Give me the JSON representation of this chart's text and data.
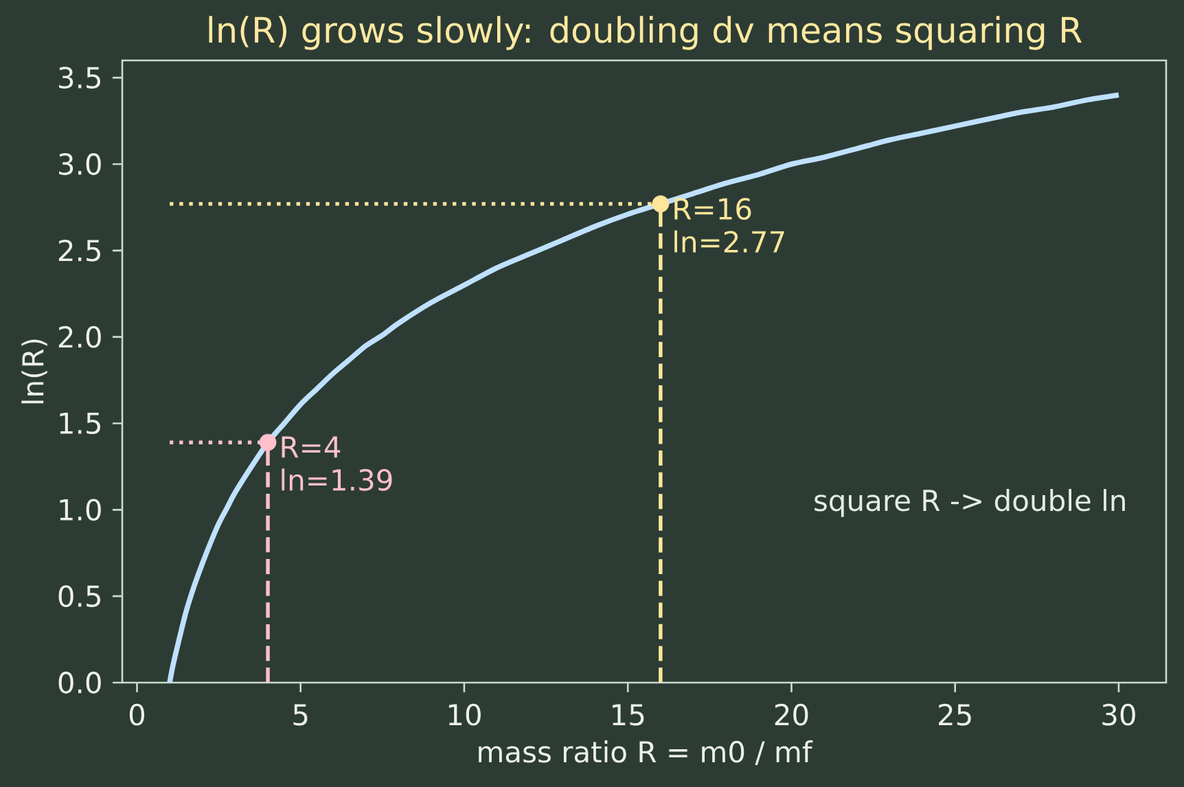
{
  "chart_data": {
    "type": "line",
    "title": "ln(R) grows slowly: doubling dv means squaring R",
    "xlabel": "mass ratio  R = m0 / mf",
    "ylabel": "ln(R)",
    "xlim": [
      -0.45,
      31.45
    ],
    "ylim": [
      0,
      3.6
    ],
    "xticks": [
      0,
      5,
      10,
      15,
      20,
      25,
      30
    ],
    "yticks": [
      {
        "value": 0,
        "label": "0.0"
      },
      0.5,
      {
        "value": 1,
        "label": "1.0"
      },
      1.5,
      {
        "value": 2,
        "label": "2.0"
      },
      2.5,
      {
        "value": 3,
        "label": "3.0"
      },
      3.5
    ],
    "series": [
      {
        "color": "#bfe0ff",
        "line_style": "solid",
        "x": [
          1,
          1.1,
          1.25,
          1.5,
          1.75,
          2,
          2.25,
          2.5,
          2.75,
          3,
          3.5,
          4,
          4.5,
          5,
          5.5,
          6,
          6.5,
          7,
          7.5,
          8,
          9,
          10,
          11,
          12,
          13,
          14,
          15,
          16,
          17,
          18,
          19,
          20,
          21,
          22,
          23,
          24,
          25,
          26,
          27,
          28,
          29,
          30
        ],
        "values": [
          0,
          0.1,
          0.22,
          0.41,
          0.56,
          0.69,
          0.81,
          0.92,
          1.01,
          1.1,
          1.25,
          1.39,
          1.5,
          1.61,
          1.7,
          1.79,
          1.87,
          1.95,
          2.01,
          2.08,
          2.2,
          2.3,
          2.4,
          2.48,
          2.56,
          2.64,
          2.71,
          2.77,
          2.83,
          2.89,
          2.94,
          3.0,
          3.04,
          3.09,
          3.14,
          3.18,
          3.22,
          3.26,
          3.3,
          3.33,
          3.37,
          3.4
        ]
      },
      {
        "type": "line",
        "color": "#ffc0cb",
        "line_style": "dashed",
        "x": [
          4,
          4
        ],
        "values": [
          0,
          1.39
        ]
      },
      {
        "type": "line",
        "color": "#ffc0cb",
        "line_style": "dotted",
        "x": [
          1,
          4
        ],
        "values": [
          1.39,
          1.39
        ]
      },
      {
        "type": "line",
        "color": "#ffe69a",
        "line_style": "dashed",
        "x": [
          16,
          16
        ],
        "values": [
          0,
          2.77
        ]
      },
      {
        "type": "line",
        "color": "#ffe69a",
        "line_style": "dotted",
        "x": [
          1,
          16
        ],
        "values": [
          2.77,
          2.77
        ]
      },
      {
        "type": "scatter",
        "color": "#ffc0cb",
        "marker": "circle",
        "x": [
          4
        ],
        "values": [
          1.39
        ]
      },
      {
        "type": "scatter",
        "color": "#ffe69a",
        "marker": "circle",
        "x": [
          16
        ],
        "values": [
          2.77
        ]
      }
    ],
    "annotations": [
      {
        "text": "R=4 ln=1.39",
        "x": 4,
        "y": 1.39
      },
      {
        "text": "R=16 ln=2.77",
        "x": 16,
        "y": 2.77
      },
      "square R  ->  double ln"
    ]
  }
}
